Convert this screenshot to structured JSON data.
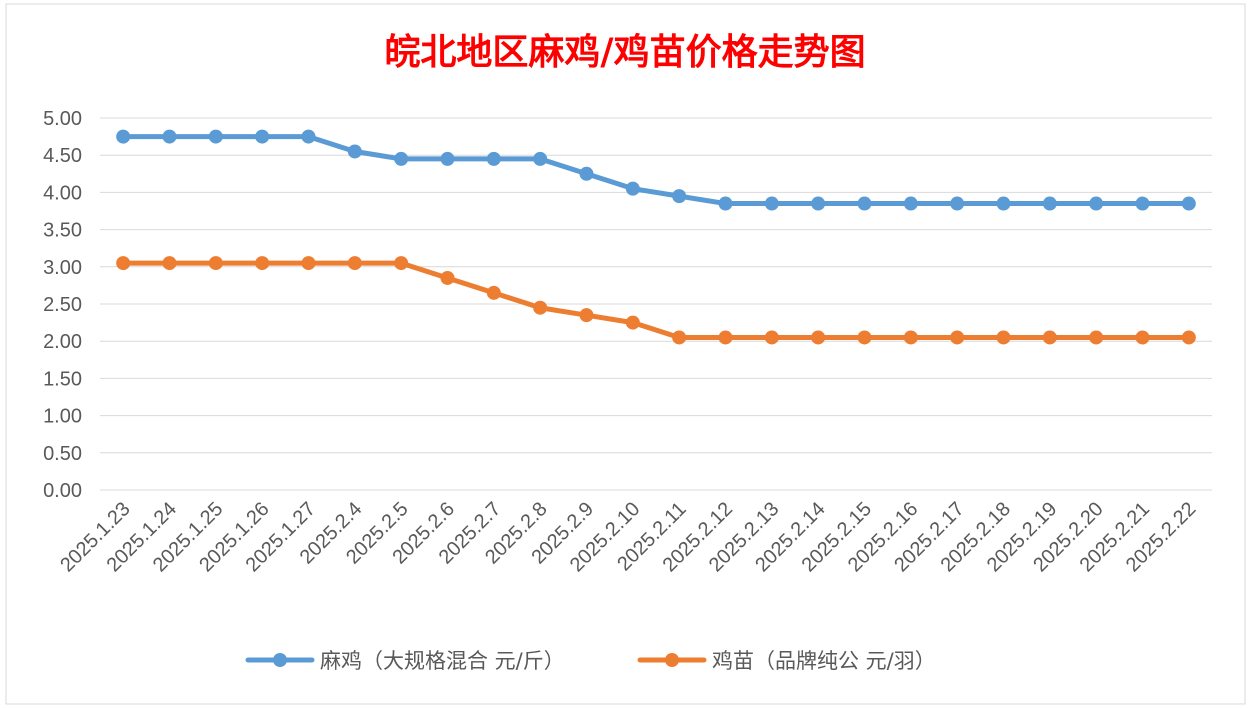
{
  "chart_data": {
    "type": "line",
    "title": "皖北地区麻鸡/鸡苗价格走势图",
    "xlabel": "",
    "ylabel": "",
    "categories": [
      "2025.1.23",
      "2025.1.24",
      "2025.1.25",
      "2025.1.26",
      "2025.1.27",
      "2025.2.4",
      "2025.2.5",
      "2025.2.6",
      "2025.2.7",
      "2025.2.8",
      "2025.2.9",
      "2025.2.10",
      "2025.2.11",
      "2025.2.12",
      "2025.2.13",
      "2025.2.14",
      "2025.2.15",
      "2025.2.16",
      "2025.2.17",
      "2025.2.18",
      "2025.2.19",
      "2025.2.20",
      "2025.2.21",
      "2025.2.22"
    ],
    "series": [
      {
        "name": "麻鸡（大规格混合 元/斤）",
        "color": "#5b9bd5",
        "values": [
          4.75,
          4.75,
          4.75,
          4.75,
          4.75,
          4.55,
          4.45,
          4.45,
          4.45,
          4.45,
          4.25,
          4.05,
          3.95,
          3.85,
          3.85,
          3.85,
          3.85,
          3.85,
          3.85,
          3.85,
          3.85,
          3.85,
          3.85,
          3.85
        ]
      },
      {
        "name": "鸡苗（品牌纯公 元/羽）",
        "color": "#ed7d31",
        "values": [
          3.05,
          3.05,
          3.05,
          3.05,
          3.05,
          3.05,
          3.05,
          2.85,
          2.65,
          2.45,
          2.35,
          2.25,
          2.05,
          2.05,
          2.05,
          2.05,
          2.05,
          2.05,
          2.05,
          2.05,
          2.05,
          2.05,
          2.05,
          2.05
        ]
      }
    ],
    "ylim": [
      0,
      5
    ],
    "yticks": [
      "0.00",
      "0.50",
      "1.00",
      "1.50",
      "2.00",
      "2.50",
      "3.00",
      "3.50",
      "4.00",
      "4.50",
      "5.00"
    ],
    "grid": true,
    "legend": "bottom",
    "title_color": "#ff0000"
  }
}
